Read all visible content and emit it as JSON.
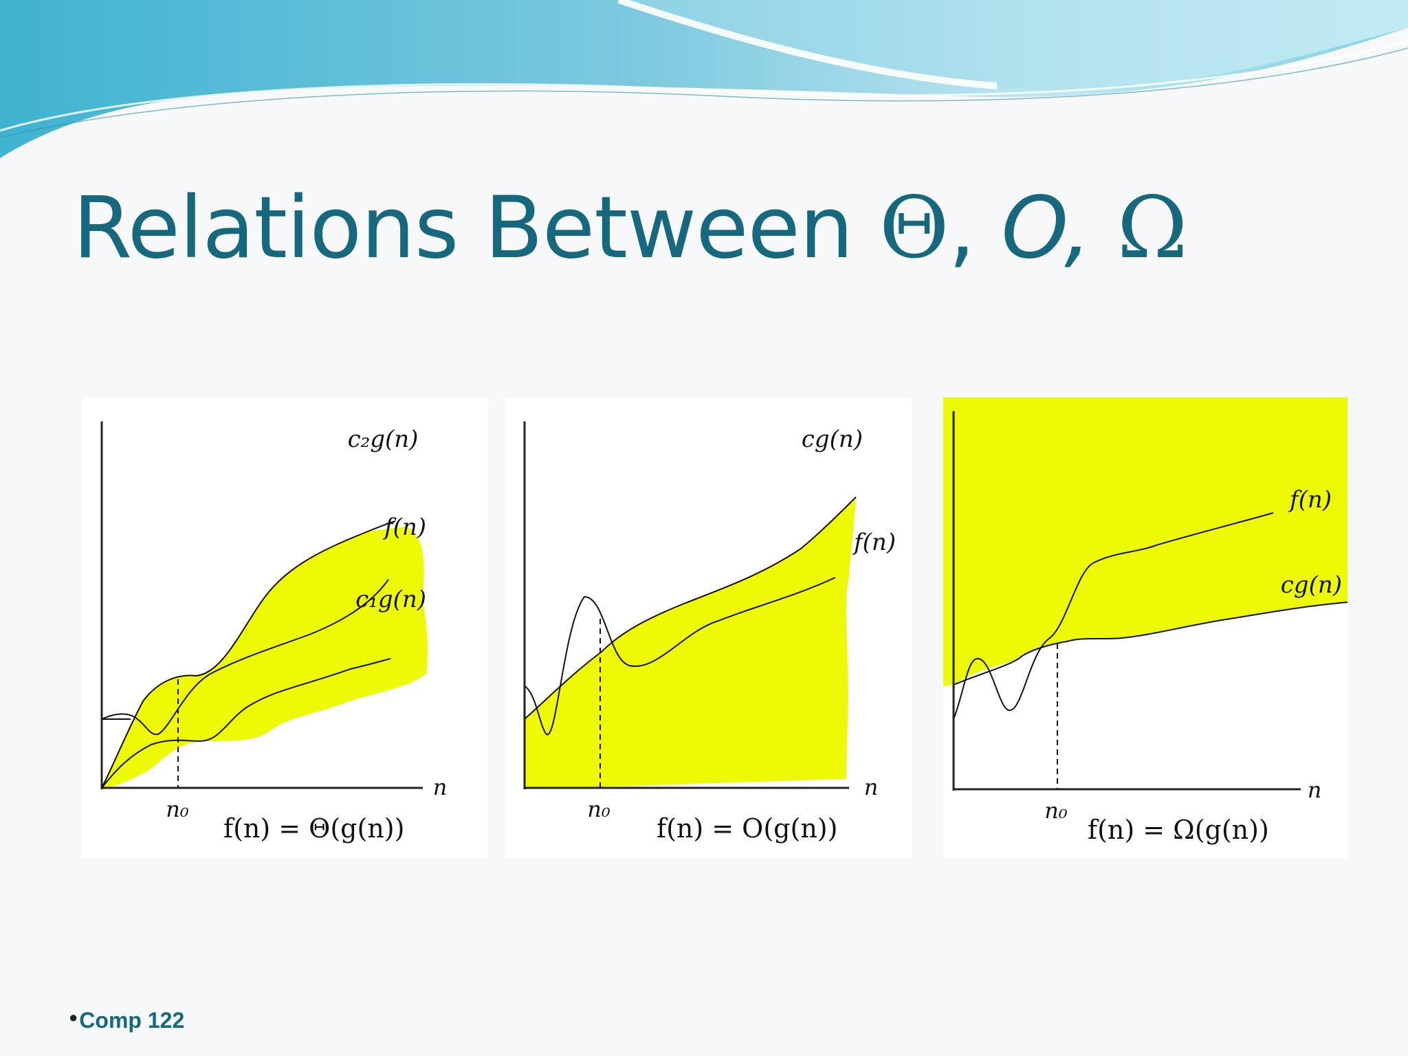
{
  "slide": {
    "title": {
      "prefix": "Relations Between ",
      "theta": "Θ",
      "sep1": ", ",
      "o": "O",
      "sep2": ", ",
      "omega": "Ω"
    },
    "footer": "Comp 122",
    "colors": {
      "title": "#16687f",
      "highlight": "#eefa05",
      "banner_light": "#bfe7f2",
      "banner_dark": "#3fb3d1"
    }
  },
  "diagrams": [
    {
      "name": "theta",
      "upper_label": "c₂g(n)",
      "middle_label": "f(n)",
      "lower_label": "c₁g(n)",
      "x_axis_label": "n",
      "threshold_label": "n₀",
      "formula": "f(n) = Θ(g(n))"
    },
    {
      "name": "big-o",
      "upper_label": "cg(n)",
      "middle_label": "f(n)",
      "x_axis_label": "n",
      "threshold_label": "n₀",
      "formula": "f(n) = O(g(n))"
    },
    {
      "name": "omega",
      "upper_label": "f(n)",
      "middle_label": "cg(n)",
      "x_axis_label": "n",
      "threshold_label": "n₀",
      "formula": "f(n) = Ω(g(n))"
    }
  ]
}
